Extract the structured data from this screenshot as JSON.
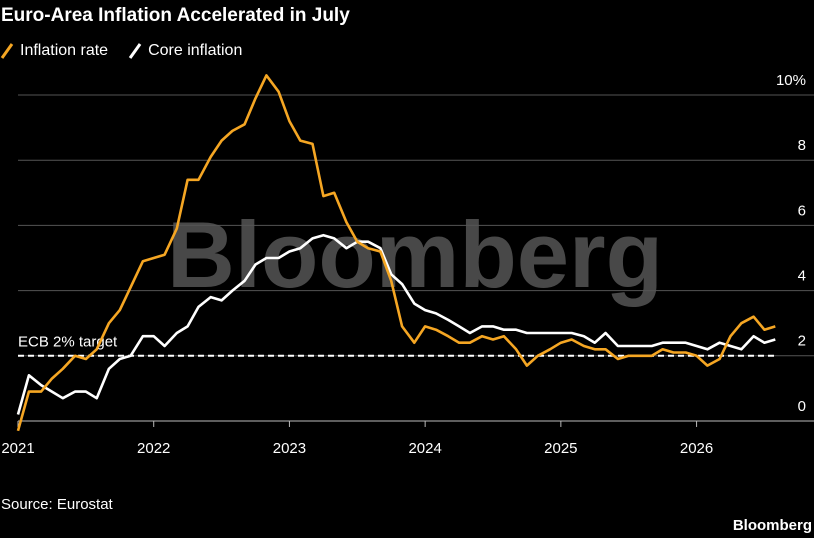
{
  "chart_data": {
    "type": "line",
    "title": "Euro-Area Inflation Accelerated in July",
    "source": "Source: Eurostat",
    "brand": "Bloomberg",
    "watermark": "Bloomberg",
    "reference": {
      "value": 2,
      "label": "ECB 2% target"
    },
    "x": [
      2021,
      2021.08,
      2021.17,
      2021.25,
      2021.33,
      2021.42,
      2021.5,
      2021.58,
      2021.67,
      2021.75,
      2021.83,
      2021.92,
      2022,
      2022.08,
      2022.17,
      2022.25,
      2022.33,
      2022.42,
      2022.5,
      2022.58,
      2022.67,
      2022.75,
      2022.83,
      2022.92,
      2023,
      2023.08,
      2023.17,
      2023.25,
      2023.33,
      2023.42,
      2023.5,
      2023.58,
      2023.67,
      2023.75,
      2023.83,
      2023.92,
      2024,
      2024.08,
      2024.17,
      2024.25,
      2024.33,
      2024.42,
      2024.5,
      2024.58,
      2024.67,
      2024.75,
      2024.83,
      2024.92,
      2025,
      2025.08,
      2025.17,
      2025.25,
      2025.33,
      2025.42,
      2025.5,
      2025.58,
      2025.67,
      2025.75,
      2025.83,
      2025.92,
      2026,
      2026.08,
      2026.17,
      2026.25,
      2026.33,
      2026.42,
      2026.5,
      2026.58
    ],
    "series": [
      {
        "name": "Inflation rate",
        "color": "#f5a623",
        "values": [
          -0.3,
          0.9,
          0.9,
          1.3,
          1.6,
          2.0,
          1.9,
          2.2,
          3.0,
          3.4,
          4.1,
          4.9,
          5.0,
          5.1,
          5.9,
          7.4,
          7.4,
          8.1,
          8.6,
          8.9,
          9.1,
          9.9,
          10.6,
          10.1,
          9.2,
          8.6,
          8.5,
          6.9,
          7.0,
          6.1,
          5.5,
          5.3,
          5.2,
          4.3,
          2.9,
          2.4,
          2.9,
          2.8,
          2.6,
          2.4,
          2.4,
          2.6,
          2.5,
          2.6,
          2.2,
          1.7,
          2.0,
          2.2,
          2.4,
          2.5,
          2.3,
          2.2,
          2.2,
          1.9,
          2.0,
          2.0,
          2.0,
          2.2,
          2.1,
          2.1,
          2.0,
          1.7,
          1.9,
          2.6,
          3.0,
          3.2,
          2.8,
          2.9
        ]
      },
      {
        "name": "Core inflation",
        "color": "#ffffff",
        "values": [
          0.2,
          1.4,
          1.1,
          0.9,
          0.7,
          0.9,
          0.9,
          0.7,
          1.6,
          1.9,
          2.0,
          2.6,
          2.6,
          2.3,
          2.7,
          2.9,
          3.5,
          3.8,
          3.7,
          4.0,
          4.3,
          4.8,
          5.0,
          5.0,
          5.2,
          5.3,
          5.6,
          5.7,
          5.6,
          5.3,
          5.5,
          5.5,
          5.3,
          4.5,
          4.2,
          3.6,
          3.4,
          3.3,
          3.1,
          2.9,
          2.7,
          2.9,
          2.9,
          2.8,
          2.8,
          2.7,
          2.7,
          2.7,
          2.7,
          2.7,
          2.6,
          2.4,
          2.7,
          2.3,
          2.3,
          2.3,
          2.3,
          2.4,
          2.4,
          2.4,
          2.3,
          2.2,
          2.4,
          2.3,
          2.2,
          2.6,
          2.4,
          2.5
        ]
      }
    ],
    "xlim": [
      2021,
      2026.6
    ],
    "xticks": [
      2021,
      2022,
      2023,
      2024,
      2025,
      2026
    ],
    "ylim": [
      -0.5,
      10.7
    ],
    "yticks": [
      {
        "value": 10,
        "label": "10%"
      },
      8,
      6,
      4,
      2,
      0
    ],
    "grid": true
  }
}
